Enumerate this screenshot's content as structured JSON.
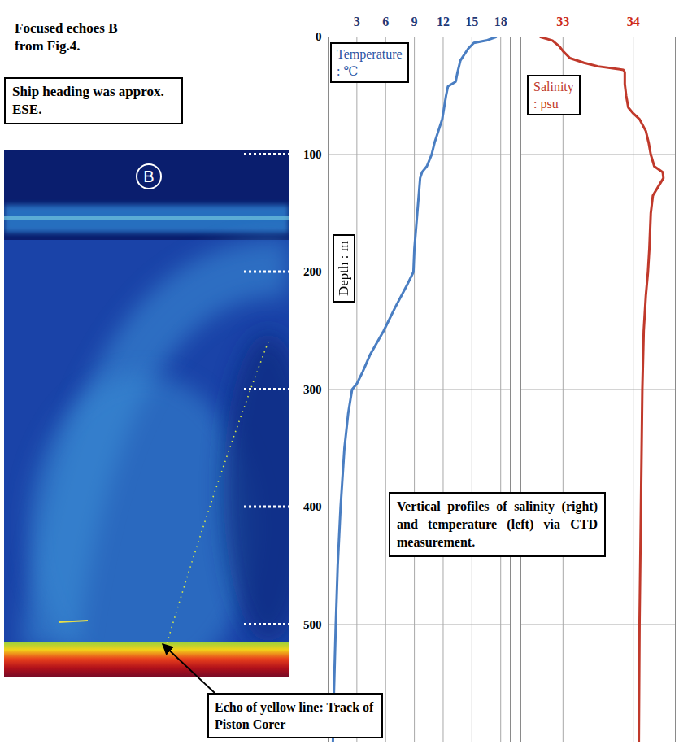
{
  "chart_data": [
    {
      "type": "line",
      "x_label": "Temperature : ℃",
      "y_label": "Depth : m",
      "color": "#4a7ec2",
      "depth": [
        0,
        3,
        5,
        10,
        20,
        30,
        38,
        42,
        50,
        60,
        70,
        80,
        90,
        100,
        110,
        115,
        120,
        130,
        150,
        180,
        200,
        210,
        230,
        250,
        270,
        285,
        295,
        300,
        320,
        350,
        400,
        450,
        500,
        560,
        600
      ],
      "values": [
        17.5,
        16.5,
        15.2,
        14.6,
        13.8,
        13.5,
        13.3,
        12.5,
        12.3,
        12.1,
        11.9,
        11.5,
        11.1,
        10.8,
        10.3,
        9.8,
        9.6,
        9.5,
        9.3,
        9.0,
        8.9,
        8.3,
        7.0,
        5.8,
        4.4,
        3.6,
        3.0,
        2.5,
        2.1,
        1.7,
        1.3,
        1.0,
        0.8,
        0.6,
        0.5
      ],
      "xlim": [
        0,
        19
      ],
      "xticks": [
        3,
        6,
        9,
        12,
        15,
        18
      ],
      "ylim": [
        0,
        600
      ],
      "yticks": [
        0,
        100,
        200,
        300,
        400,
        500
      ],
      "grid": true
    },
    {
      "type": "line",
      "x_label": "Salinity : psu",
      "color": "#c0392b",
      "depth": [
        0,
        3,
        8,
        12,
        18,
        22,
        25,
        28,
        30,
        40,
        50,
        60,
        65,
        70,
        80,
        90,
        100,
        110,
        115,
        120,
        125,
        135,
        150,
        180,
        200,
        220,
        250,
        300,
        350,
        400,
        500,
        600
      ],
      "values": [
        32.68,
        32.85,
        32.95,
        33.0,
        33.1,
        33.3,
        33.5,
        33.86,
        33.88,
        33.88,
        33.9,
        33.93,
        34.0,
        34.09,
        34.18,
        34.22,
        34.25,
        34.3,
        34.42,
        34.43,
        34.38,
        34.28,
        34.25,
        34.23,
        34.21,
        34.18,
        34.15,
        34.13,
        34.12,
        34.11,
        34.09,
        34.08
      ],
      "xlim": [
        32.4,
        34.6
      ],
      "xticks": [
        33,
        34
      ],
      "ylim": [
        0,
        600
      ],
      "yticks": [
        0,
        100,
        200,
        300,
        400,
        500
      ],
      "grid": true,
      "tick_labels": "x"
    }
  ],
  "echogram": {
    "title": "Focused echoes B from Fig.4.",
    "note": "Ship heading was approx. ESE.",
    "panel_label": "B",
    "arrow_label": "Echo of yellow line: Track of Piston Corer"
  },
  "caption": "Vertical profiles of salinity (right) and temperature (left) via CTD measurement."
}
